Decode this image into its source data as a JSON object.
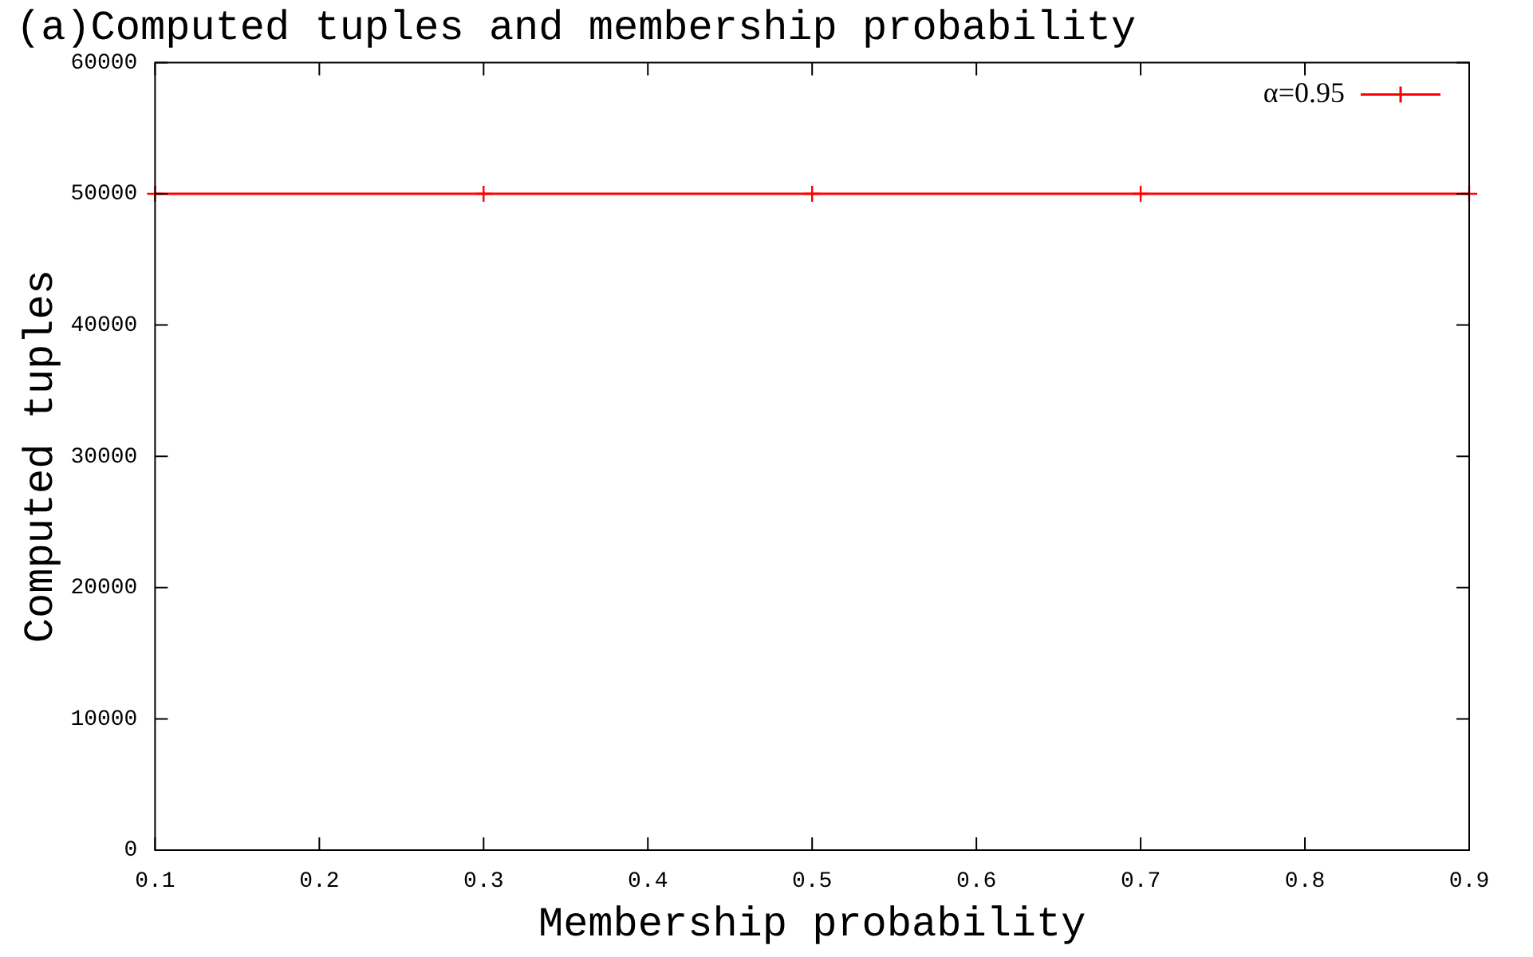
{
  "chart_data": {
    "type": "line",
    "title": "(a)Computed tuples and membership probability",
    "xlabel": "Membership probability",
    "ylabel": "Computed tuples",
    "x": [
      0.1,
      0.3,
      0.5,
      0.7,
      0.9
    ],
    "series": [
      {
        "name": "α=0.95",
        "color": "#ff0000",
        "values": [
          50000,
          50000,
          50000,
          50000,
          50000
        ]
      }
    ],
    "xlim": [
      0.1,
      0.9
    ],
    "xticks": [
      0.1,
      0.2,
      0.3,
      0.4,
      0.5,
      0.6,
      0.7,
      0.8,
      0.9
    ],
    "ylim": [
      0,
      60000
    ],
    "yticks": [
      0,
      10000,
      20000,
      30000,
      40000,
      50000,
      60000
    ],
    "grid": false,
    "legend": "top right",
    "marker": "cross",
    "line_style": "solid"
  }
}
